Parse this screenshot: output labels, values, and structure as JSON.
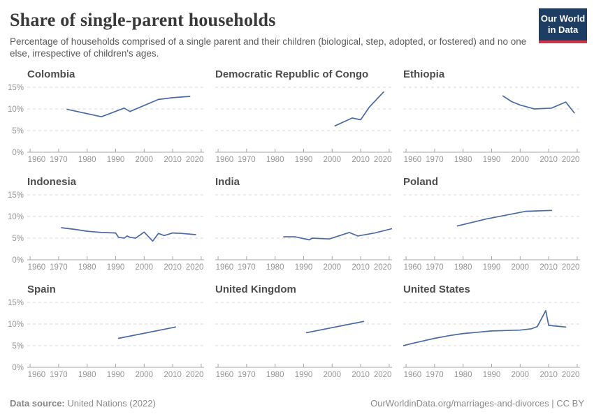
{
  "header": {
    "title": "Share of single-parent households",
    "subtitle": "Percentage of households comprised of a single parent and their children (biological, step, adopted, or fostered) and no one else, irrespective of children's ages.",
    "logo": {
      "line1": "Our World",
      "line2": "in Data",
      "bg_color": "#1d3d63",
      "stripe_color": "#d0334a"
    }
  },
  "footer": {
    "source_label": "Data source:",
    "source_value": " United Nations (2022)",
    "link": "OurWorldinData.org/marriages-and-divorces | CC BY"
  },
  "axis": {
    "x_domain": [
      1959,
      2021
    ],
    "x_ticks": [
      1960,
      1970,
      1980,
      1990,
      2000,
      2010,
      2020
    ],
    "y_ticks": [
      0,
      5,
      10,
      15
    ],
    "y_tick_labels": [
      "0%",
      "5%",
      "10%",
      "15%"
    ],
    "y_max": 15,
    "grid": "dashed horizontal",
    "legend": "none",
    "line_color": "#4a69a5",
    "grid_color": "#d9d9d9",
    "axis_color": "#a5a5a5",
    "tick_label_color": "#949494"
  },
  "chart_data": [
    {
      "type": "line",
      "title": "Colombia",
      "x": [
        1973,
        1985,
        1993,
        1995,
        2005,
        2010,
        2016
      ],
      "y": [
        9.9,
        8.2,
        10.2,
        9.4,
        12.2,
        12.6,
        12.9
      ],
      "ylim": [
        0,
        15
      ],
      "xlim": [
        1959,
        2021
      ]
    },
    {
      "type": "line",
      "title": "Democratic Republic of Congo",
      "x": [
        2001,
        2007,
        2010,
        2013,
        2018
      ],
      "y": [
        6.1,
        7.9,
        7.5,
        10.4,
        13.9
      ],
      "ylim": [
        0,
        15
      ],
      "xlim": [
        1959,
        2021
      ]
    },
    {
      "type": "line",
      "title": "Ethiopia",
      "x": [
        1994,
        1997,
        2000,
        2005,
        2011,
        2016,
        2019
      ],
      "y": [
        13.0,
        11.7,
        10.9,
        10.0,
        10.2,
        11.6,
        9.1
      ],
      "ylim": [
        0,
        15
      ],
      "xlim": [
        1959,
        2021
      ]
    },
    {
      "type": "line",
      "title": "Indonesia",
      "x": [
        1971,
        1976,
        1980,
        1985,
        1990,
        1991,
        1993,
        1994,
        1995,
        1997,
        2000,
        2003,
        2005,
        2007,
        2010,
        2013,
        2018
      ],
      "y": [
        7.4,
        7.0,
        6.6,
        6.3,
        6.2,
        5.2,
        5.0,
        5.5,
        5.2,
        5.0,
        6.4,
        4.3,
        6.1,
        5.6,
        6.2,
        6.1,
        5.8
      ],
      "ylim": [
        0,
        15
      ],
      "xlim": [
        1959,
        2021
      ]
    },
    {
      "type": "line",
      "title": "India",
      "x": [
        1983,
        1987,
        1992,
        1993,
        1999,
        2006,
        2009,
        2015,
        2021
      ],
      "y": [
        5.3,
        5.3,
        4.6,
        5.0,
        4.8,
        6.3,
        5.5,
        6.2,
        7.2
      ],
      "ylim": [
        0,
        15
      ],
      "xlim": [
        1959,
        2021
      ]
    },
    {
      "type": "line",
      "title": "Poland",
      "x": [
        1978,
        1988,
        2002,
        2011
      ],
      "y": [
        7.8,
        9.4,
        11.2,
        11.4
      ],
      "ylim": [
        0,
        15
      ],
      "xlim": [
        1959,
        2021
      ]
    },
    {
      "type": "line",
      "title": "Spain",
      "x": [
        1991,
        2011
      ],
      "y": [
        6.7,
        9.3
      ],
      "ylim": [
        0,
        15
      ],
      "xlim": [
        1959,
        2021
      ]
    },
    {
      "type": "line",
      "title": "United Kingdom",
      "x": [
        1991,
        2011
      ],
      "y": [
        8.0,
        10.6
      ],
      "ylim": [
        0,
        15
      ],
      "xlim": [
        1959,
        2021
      ]
    },
    {
      "type": "line",
      "title": "United States",
      "x": [
        1959,
        1962,
        1966,
        1970,
        1975,
        1980,
        1985,
        1990,
        1995,
        2000,
        2004,
        2006,
        2009,
        2010,
        2013,
        2016
      ],
      "y": [
        5.0,
        5.5,
        6.1,
        6.7,
        7.3,
        7.8,
        8.1,
        8.4,
        8.5,
        8.6,
        8.9,
        9.4,
        13.1,
        9.7,
        9.5,
        9.3
      ],
      "ylim": [
        0,
        15
      ],
      "xlim": [
        1959,
        2021
      ]
    }
  ]
}
